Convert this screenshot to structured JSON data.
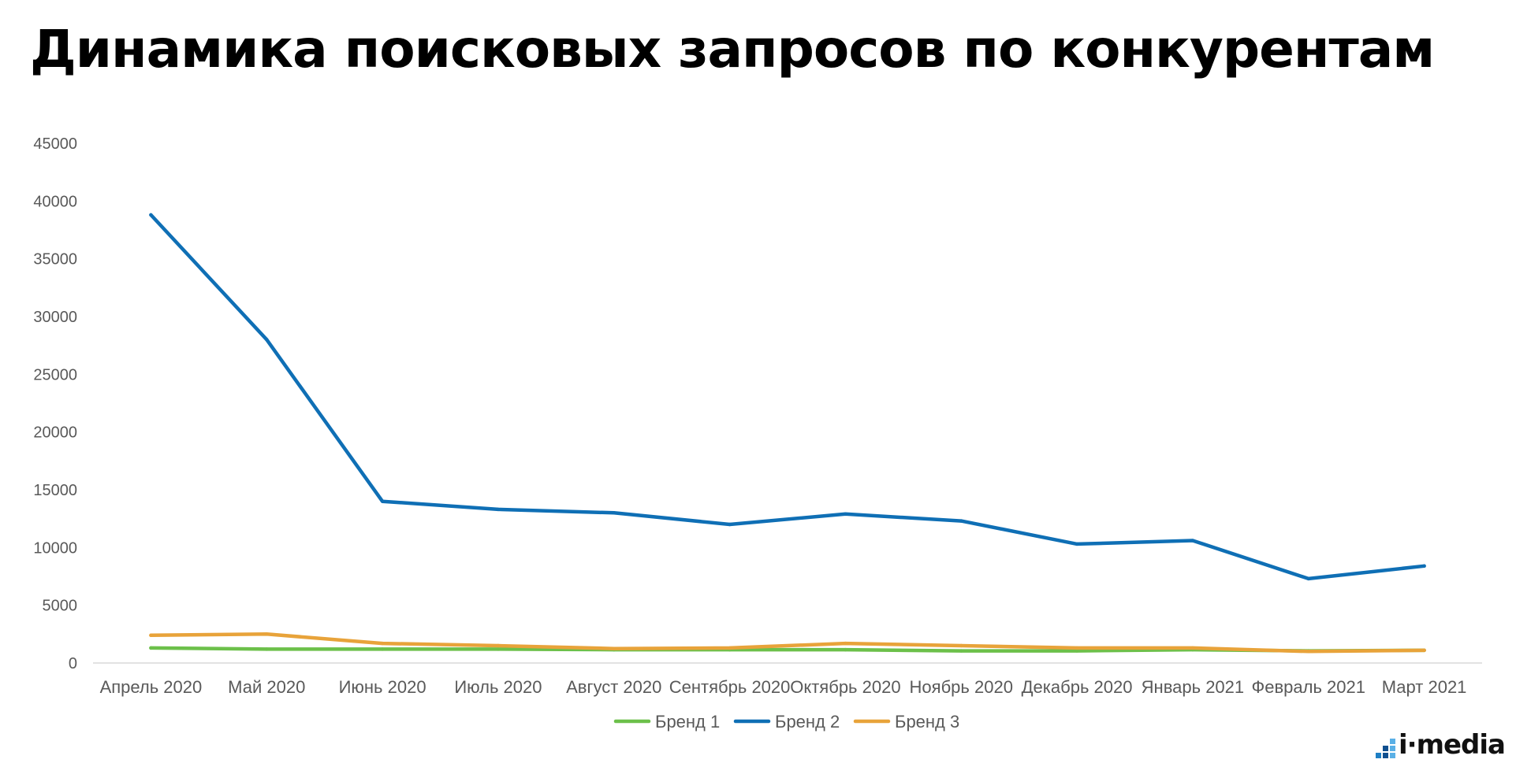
{
  "chart_data": {
    "type": "line",
    "title": "Динамика поисковых запросов по конкурентам",
    "xlabel": "",
    "ylabel": "",
    "ylim": [
      0,
      45000
    ],
    "yticks": [
      "0",
      "5000",
      "10000",
      "15000",
      "20000",
      "25000",
      "30000",
      "35000",
      "40000",
      "45000"
    ],
    "categories": [
      "Апрель 2020",
      "Май 2020",
      "Июнь 2020",
      "Июль 2020",
      "Август 2020",
      "Сентябрь 2020",
      "Октябрь 2020",
      "Ноябрь 2020",
      "Декабрь 2020",
      "Январь 2021",
      "Февраль 2021",
      "Март 2021"
    ],
    "grid": false,
    "legend": "bottom",
    "series": [
      {
        "name": "Бренд 1",
        "color": "#6CC04A",
        "values": [
          1300,
          1200,
          1200,
          1200,
          1150,
          1150,
          1150,
          1050,
          1050,
          1150,
          1050,
          1100
        ]
      },
      {
        "name": "Бренд 2",
        "color": "#0F6FB5",
        "values": [
          38800,
          28000,
          14000,
          13300,
          13000,
          12000,
          12900,
          12300,
          10300,
          10600,
          7300,
          8400
        ]
      },
      {
        "name": "Бренд 3",
        "color": "#E8A33A",
        "values": [
          2400,
          2500,
          1700,
          1500,
          1250,
          1300,
          1700,
          1500,
          1300,
          1300,
          1000,
          1100
        ]
      }
    ]
  },
  "brand": {
    "logo_text": "i·media",
    "logo_colors": [
      "#1E7FC4",
      "#0F4F8F",
      "#5AB0E6"
    ]
  }
}
